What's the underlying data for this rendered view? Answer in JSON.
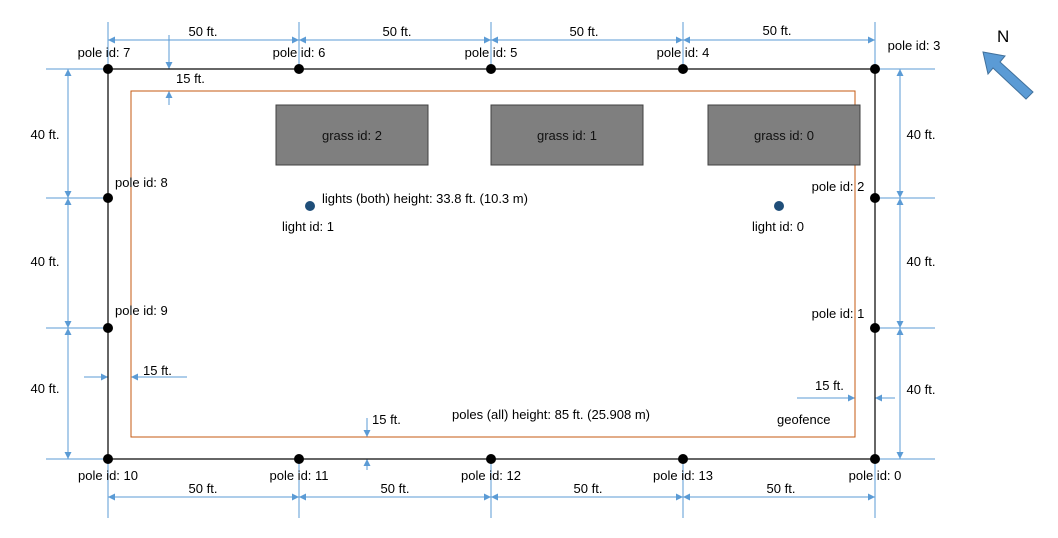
{
  "colors": {
    "outline": "#000000",
    "dimension": "#5b9bd5",
    "geofence": "#c55a11",
    "grass_fill": "#7f7f7f",
    "light": "#1f4e79",
    "north_arrow": "#5b9bd5"
  },
  "north_label": "N",
  "poles": [
    {
      "id": "0",
      "label": "pole id: 0"
    },
    {
      "id": "1",
      "label": "pole id: 1"
    },
    {
      "id": "2",
      "label": "pole id: 2"
    },
    {
      "id": "3",
      "label": "pole id: 3"
    },
    {
      "id": "4",
      "label": "pole id: 4"
    },
    {
      "id": "5",
      "label": "pole id: 5"
    },
    {
      "id": "6",
      "label": "pole id: 6"
    },
    {
      "id": "7",
      "label": "pole id: 7"
    },
    {
      "id": "8",
      "label": "pole id: 8"
    },
    {
      "id": "9",
      "label": "pole id: 9"
    },
    {
      "id": "10",
      "label": "pole id: 10"
    },
    {
      "id": "11",
      "label": "pole id: 11"
    },
    {
      "id": "12",
      "label": "pole id: 12"
    },
    {
      "id": "13",
      "label": "pole id: 13"
    }
  ],
  "lights": [
    {
      "id": "0",
      "label": "light id: 0"
    },
    {
      "id": "1",
      "label": "light id: 1"
    }
  ],
  "grass": [
    {
      "id": "0",
      "label": "grass id: 0"
    },
    {
      "id": "1",
      "label": "grass id: 1"
    },
    {
      "id": "2",
      "label": "grass id: 2"
    }
  ],
  "notes": {
    "lights_height": "lights (both) height: 33.8 ft. (10.3 m)",
    "poles_height": "poles (all) height: 85 ft. (25.908 m)",
    "geofence": "geofence"
  },
  "dimensions": {
    "top": [
      "50 ft.",
      "50 ft.",
      "50 ft.",
      "50 ft."
    ],
    "bottom": [
      "50 ft.",
      "50 ft.",
      "50 ft.",
      "50 ft."
    ],
    "left": [
      "40 ft.",
      "40 ft.",
      "40 ft."
    ],
    "right": [
      "40 ft.",
      "40 ft.",
      "40 ft."
    ],
    "offset_top": "15 ft.",
    "offset_bottom": "15 ft.",
    "offset_left": "15 ft.",
    "offset_right": "15 ft."
  }
}
